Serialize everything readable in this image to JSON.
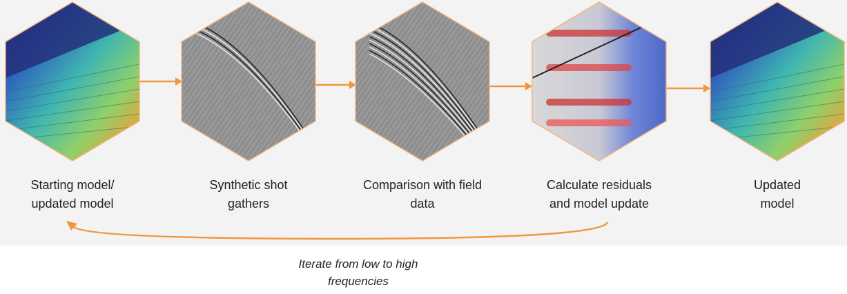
{
  "nodes": [
    {
      "label_lines": [
        "Starting model/",
        "updated model"
      ]
    },
    {
      "label_lines": [
        "Synthetic shot",
        "gathers"
      ]
    },
    {
      "label_lines": [
        "Comparison with field",
        "data"
      ]
    },
    {
      "label_lines": [
        "Calculate residuals",
        "and model update"
      ]
    },
    {
      "label_lines": [
        "Updated",
        "model"
      ]
    }
  ],
  "loop": {
    "label_lines": [
      "Iterate from low to high",
      "frequencies"
    ]
  }
}
